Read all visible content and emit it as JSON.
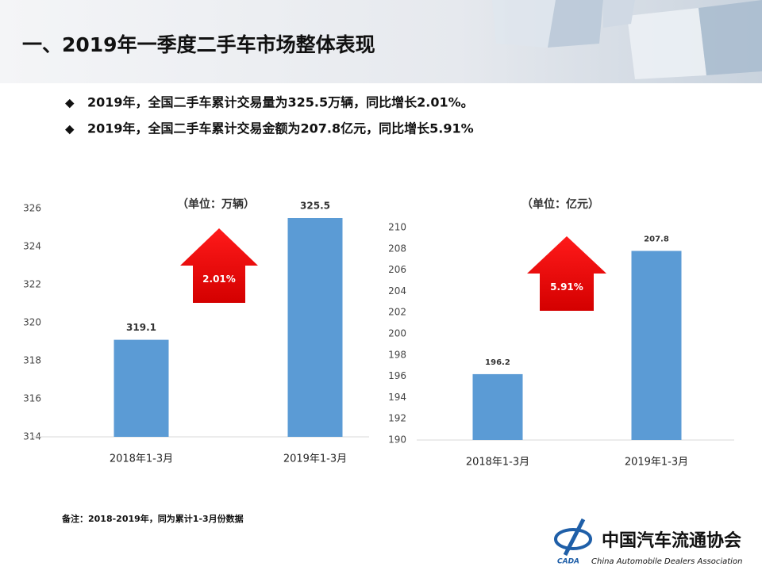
{
  "title": "一、2019年一季度二手车市场整体表现",
  "bullets": [
    "2019年，全国二手车累计交易量为325.5万辆，同比增长2.01%。",
    "2019年，全国二手车累计交易金额为207.8亿元，同比增长5.91%"
  ],
  "note": "备注：2018-2019年，同为累计1-3月份数据",
  "logo": {
    "name": "中国汽车流通协会",
    "abbr": "CADA",
    "english": "China Automobile Dealers Association"
  },
  "chart_data": [
    {
      "type": "bar",
      "unit_label": "（单位：万辆）",
      "growth_label": "2.01%",
      "categories": [
        "2018年1-3月",
        "2019年1-3月"
      ],
      "values": [
        319.1,
        325.5
      ],
      "color": "#5b9bd5",
      "ylim": [
        314,
        326
      ],
      "yticks": [
        314,
        316,
        318,
        320,
        322,
        324,
        326
      ],
      "grid": false
    },
    {
      "type": "bar",
      "unit_label": "（单位：亿元）",
      "growth_label": "5.91%",
      "categories": [
        "2018年1-3月",
        "2019年1-3月"
      ],
      "values": [
        196.2,
        207.8
      ],
      "color": "#5b9bd5",
      "ylim": [
        190,
        210
      ],
      "yticks": [
        190,
        192,
        194,
        196,
        198,
        200,
        202,
        204,
        206,
        208,
        210
      ],
      "grid": false
    }
  ]
}
